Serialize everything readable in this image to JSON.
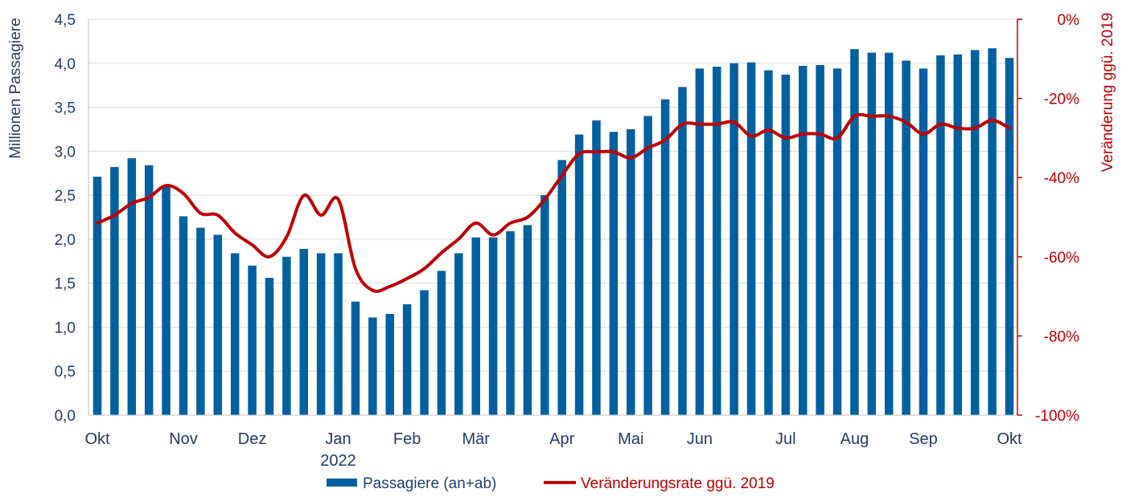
{
  "chart_data": {
    "type": "bar+line",
    "colors": {
      "bars": "#0060a0",
      "line": "#c00000",
      "left_axis": "#1f3f6e",
      "right_axis": "#c00000",
      "grid": "#d9d9d9"
    },
    "x_labels": [
      {
        "label": "Okt",
        "index": 0
      },
      {
        "label": "Nov",
        "index": 5
      },
      {
        "label": "Dez",
        "index": 9
      },
      {
        "label": "Jan",
        "index": 14
      },
      {
        "label": "Feb",
        "index": 18
      },
      {
        "label": "Mär",
        "index": 22
      },
      {
        "label": "Apr",
        "index": 27
      },
      {
        "label": "Mai",
        "index": 31
      },
      {
        "label": "Jun",
        "index": 35
      },
      {
        "label": "Jul",
        "index": 40
      },
      {
        "label": "Aug",
        "index": 44
      },
      {
        "label": "Sep",
        "index": 48
      },
      {
        "label": "Okt",
        "index": 53
      }
    ],
    "year_label": {
      "text": "2022",
      "index": 14
    },
    "left_axis": {
      "title": "Millionen Passagiere",
      "min": 0,
      "max": 4.5,
      "ticks": [
        "0,0",
        "0,5",
        "1,0",
        "1,5",
        "2,0",
        "2,5",
        "3,0",
        "3,5",
        "4,0",
        "4,5"
      ]
    },
    "right_axis": {
      "title": "Veränderung ggü. 2019",
      "min": -100,
      "max": 0,
      "ticks": [
        "-100%",
        "-80%",
        "-60%",
        "-40%",
        "-20%",
        "0%"
      ]
    },
    "series": [
      {
        "name": "Passagiere (an+ab)",
        "type": "bar",
        "axis": "left",
        "values": [
          2.71,
          2.82,
          2.92,
          2.84,
          2.6,
          2.26,
          2.13,
          2.05,
          1.84,
          1.7,
          1.56,
          1.8,
          1.89,
          1.84,
          1.84,
          1.29,
          1.11,
          1.15,
          1.26,
          1.42,
          1.64,
          1.84,
          2.02,
          2.02,
          2.09,
          2.16,
          2.5,
          2.9,
          3.19,
          3.35,
          3.22,
          3.25,
          3.4,
          3.59,
          3.73,
          3.94,
          3.96,
          4.0,
          4.01,
          3.92,
          3.87,
          3.97,
          3.98,
          3.94,
          4.16,
          4.12,
          4.12,
          4.03,
          3.94,
          4.09,
          4.1,
          4.15,
          4.17,
          4.06
        ]
      },
      {
        "name": "Veränderungsrate ggü. 2019",
        "type": "line",
        "axis": "right",
        "values": [
          -51.5,
          -49.5,
          -46.5,
          -45,
          -42,
          -44,
          -49,
          -49.5,
          -54,
          -57,
          -60,
          -55,
          -44.5,
          -49.5,
          -45.5,
          -63,
          -68.5,
          -67.5,
          -65.5,
          -63,
          -59,
          -55.5,
          -51.5,
          -54.5,
          -51.5,
          -50,
          -45.5,
          -39.5,
          -34,
          -33.5,
          -33.5,
          -35,
          -32.5,
          -30.5,
          -26.5,
          -26.5,
          -26.5,
          -26,
          -29.5,
          -28,
          -30,
          -29,
          -29,
          -30,
          -24.5,
          -24.5,
          -24.5,
          -26,
          -29,
          -26.5,
          -27.5,
          -27.5,
          -25.5,
          -27.5
        ]
      }
    ],
    "legend": {
      "bar_label": "Passagiere (an+ab)",
      "line_label": "Veränderungsrate ggü. 2019",
      "position": "bottom-center"
    }
  }
}
